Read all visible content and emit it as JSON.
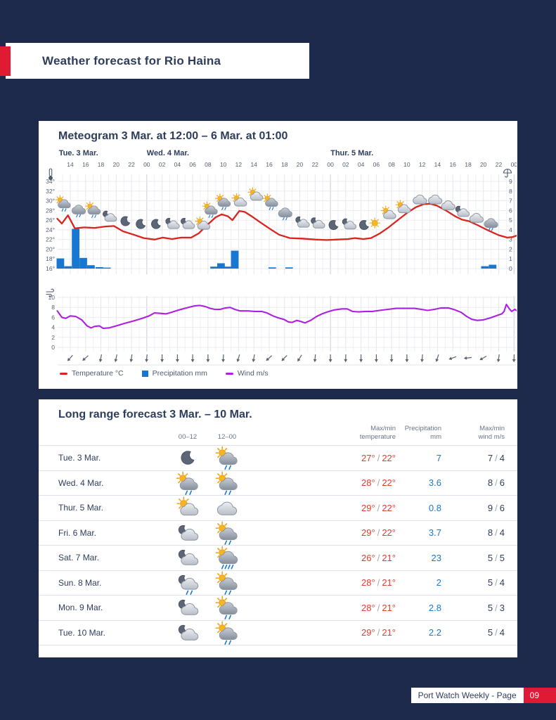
{
  "page": {
    "header_title": "Weather forecast for Rio Haina",
    "footer_label": "Port Watch Weekly - Page",
    "footer_page": "09"
  },
  "colors": {
    "background": "#1d2a4c",
    "accent_red": "#e01a32",
    "navy_text": "#2e3d5c",
    "temperature": "#d9251d",
    "precipitation": "#1878d1",
    "wind": "#ae20e0",
    "grid": "#eff1f5",
    "grid_major": "#e3e7ec",
    "grid_day": "#c9cfd8"
  },
  "meteogram": {
    "title": "Meteogram 3 Mar. at 12:00 – 6 Mar. at 01:00",
    "legend": [
      {
        "label": "Temperature °C",
        "color": "#d9251d",
        "swatch": "line"
      },
      {
        "label": "Precipitation mm",
        "color": "#1878d1",
        "swatch": "square"
      },
      {
        "label": "Wind m/s",
        "color": "#ae20e0",
        "swatch": "line"
      }
    ]
  },
  "long_range": {
    "title": "Long range forecast 3 Mar. – 10 Mar.",
    "headers": {
      "col_00_12": "00–12",
      "col_12_00": "12–00",
      "temp": "Max/min\ntemperature",
      "precip": "Precipitation\nmm",
      "wind": "Max/min\nwind m/s"
    }
  },
  "chart_data": [
    {
      "type": "line",
      "title": "Meteogram 3 Mar. at 12:00 – 6 Mar. at 01:00",
      "x_axis": {
        "unit": "hours since 3 Mar. 00:00",
        "range": [
          12.3,
          72.4
        ],
        "tick_labels": [
          "14",
          "16",
          "18",
          "20",
          "22",
          "00",
          "02",
          "04",
          "06",
          "08",
          "10",
          "12",
          "14",
          "16",
          "18",
          "20",
          "22",
          "00",
          "02",
          "04",
          "06",
          "08",
          "10",
          "12",
          "14",
          "16",
          "18",
          "20",
          "22",
          "00"
        ],
        "day_labels": [
          {
            "text": "Tue. 3 Mar.",
            "h": 12.5
          },
          {
            "text": "Wed. 4 Mar.",
            "h": 24
          },
          {
            "text": "Thur. 5 Mar.",
            "h": 48
          }
        ]
      },
      "y_left": {
        "icon": "thermometer-icon",
        "labels": [
          "34°",
          "32°",
          "30°",
          "28°",
          "26°",
          "24°",
          "22°",
          "20°",
          "18°",
          "16°"
        ],
        "range": [
          16,
          34
        ]
      },
      "y_right": {
        "icon": "umbrella-icon",
        "labels": [
          "9",
          "8",
          "7",
          "6",
          "5",
          "4",
          "3",
          "2",
          "1",
          "0"
        ],
        "range": [
          0,
          9
        ]
      },
      "series": [
        {
          "name": "Temperature °C",
          "type": "line",
          "color": "#d9251d",
          "points": [
            [
              12.3,
              26.3
            ],
            [
              12.9,
              25.3
            ],
            [
              13.7,
              27.0
            ],
            [
              14.6,
              24.3
            ],
            [
              15.8,
              24.5
            ],
            [
              17.2,
              24.4
            ],
            [
              18.6,
              24.7
            ],
            [
              19.7,
              24.8
            ],
            [
              20.9,
              23.7
            ],
            [
              22.3,
              23.0
            ],
            [
              23.6,
              22.3
            ],
            [
              25.0,
              22.0
            ],
            [
              26.1,
              22.4
            ],
            [
              27.3,
              22.1
            ],
            [
              28.5,
              22.4
            ],
            [
              29.8,
              22.4
            ],
            [
              30.8,
              23.3
            ],
            [
              31.9,
              25.0
            ],
            [
              33.0,
              26.6
            ],
            [
              33.8,
              27.2
            ],
            [
              34.6,
              26.8
            ],
            [
              35.2,
              26.0
            ],
            [
              36.1,
              27.9
            ],
            [
              36.8,
              27.7
            ],
            [
              37.7,
              26.8
            ],
            [
              38.8,
              25.6
            ],
            [
              40.0,
              24.3
            ],
            [
              41.3,
              23.0
            ],
            [
              42.7,
              22.3
            ],
            [
              44.3,
              22.2
            ],
            [
              46.0,
              22.0
            ],
            [
              47.5,
              21.9
            ],
            [
              48.9,
              22.0
            ],
            [
              50.3,
              22.1
            ],
            [
              51.2,
              22.3
            ],
            [
              52.3,
              22.1
            ],
            [
              53.3,
              22.3
            ],
            [
              54.4,
              23.2
            ],
            [
              55.6,
              24.5
            ],
            [
              56.8,
              26.0
            ],
            [
              58.1,
              27.6
            ],
            [
              59.2,
              28.7
            ],
            [
              60.2,
              29.3
            ],
            [
              61.0,
              29.4
            ],
            [
              61.9,
              29.0
            ],
            [
              63.1,
              28.0
            ],
            [
              64.3,
              26.8
            ],
            [
              65.2,
              26.1
            ],
            [
              66.1,
              25.8
            ],
            [
              67.2,
              25.0
            ],
            [
              68.6,
              23.9
            ],
            [
              70.0,
              22.9
            ],
            [
              71.1,
              22.4
            ],
            [
              71.8,
              22.5
            ],
            [
              72.3,
              22.8
            ]
          ]
        },
        {
          "name": "Precipitation mm",
          "type": "bar",
          "color": "#1878d1",
          "points": [
            [
              12.7,
              1.05
            ],
            [
              13.7,
              0.25
            ],
            [
              14.7,
              4.1
            ],
            [
              15.7,
              1.1
            ],
            [
              16.7,
              0.35
            ],
            [
              17.8,
              0.15
            ],
            [
              18.8,
              0.1
            ],
            [
              32.8,
              0.2
            ],
            [
              33.7,
              0.55
            ],
            [
              34.6,
              0.2
            ],
            [
              35.5,
              1.85
            ],
            [
              40.4,
              0.12
            ],
            [
              42.6,
              0.12
            ],
            [
              68.2,
              0.25
            ],
            [
              69.2,
              0.4
            ]
          ]
        }
      ],
      "weather_icons": [
        [
          13.1,
          29.5,
          "sun-cloud-rain"
        ],
        [
          15.1,
          28.2,
          "cloud-rain"
        ],
        [
          17.0,
          28.2,
          "sun-cloud-rain"
        ],
        [
          19.1,
          26.8,
          "moon-cloud"
        ],
        [
          21.2,
          25.8,
          "moon"
        ],
        [
          23.2,
          25.2,
          "moon"
        ],
        [
          25.2,
          25.2,
          "moon"
        ],
        [
          27.3,
          25.3,
          "moon-cloud"
        ],
        [
          29.3,
          25.3,
          "moon-cloud"
        ],
        [
          31.3,
          25.2,
          "sun-cloud"
        ],
        [
          32.3,
          28.2,
          "sun-cloud-rain"
        ],
        [
          34.0,
          29.8,
          "sun-cloud-rain"
        ],
        [
          36.1,
          30.0,
          "sun-cloud"
        ],
        [
          38.2,
          31.2,
          "sun-cloud"
        ],
        [
          40.2,
          29.8,
          "sun-cloud-rain"
        ],
        [
          42.1,
          27.6,
          "cloud-rain"
        ],
        [
          44.3,
          25.6,
          "moon-cloud"
        ],
        [
          46.3,
          25.4,
          "moon-cloud"
        ],
        [
          48.4,
          25.0,
          "moon"
        ],
        [
          50.4,
          25.2,
          "moon-cloud"
        ],
        [
          52.4,
          25.0,
          "moon"
        ],
        [
          53.8,
          25.4,
          "sun"
        ],
        [
          55.6,
          27.4,
          "sun-cloud"
        ],
        [
          57.5,
          28.6,
          "sun-cloud"
        ],
        [
          59.7,
          30.4,
          "cloud"
        ],
        [
          61.7,
          30.4,
          "cloud"
        ],
        [
          63.4,
          29.2,
          "cloud"
        ],
        [
          65.2,
          27.8,
          "moon-cloud"
        ],
        [
          67.1,
          26.6,
          "cloud"
        ],
        [
          69.0,
          25.4,
          "cloud-rain"
        ]
      ]
    },
    {
      "type": "line",
      "name": "Wind m/s",
      "color": "#ae20e0",
      "y": {
        "icon": "wind-icon",
        "labels": [
          "10",
          "8",
          "6",
          "4",
          "2",
          "0"
        ],
        "range": [
          0,
          10
        ]
      },
      "points": [
        [
          12.3,
          7.3
        ],
        [
          12.9,
          6.0
        ],
        [
          13.4,
          5.8
        ],
        [
          14.0,
          6.3
        ],
        [
          14.7,
          6.2
        ],
        [
          15.5,
          5.5
        ],
        [
          16.2,
          4.3
        ],
        [
          16.7,
          3.9
        ],
        [
          17.2,
          4.2
        ],
        [
          17.8,
          4.3
        ],
        [
          18.3,
          3.8
        ],
        [
          19.1,
          3.9
        ],
        [
          20.0,
          4.3
        ],
        [
          21.1,
          4.8
        ],
        [
          22.3,
          5.3
        ],
        [
          23.4,
          5.8
        ],
        [
          24.3,
          6.3
        ],
        [
          25.0,
          6.9
        ],
        [
          25.8,
          6.8
        ],
        [
          26.5,
          6.7
        ],
        [
          27.2,
          7.0
        ],
        [
          28.2,
          7.5
        ],
        [
          29.2,
          7.9
        ],
        [
          30.2,
          8.3
        ],
        [
          30.9,
          8.4
        ],
        [
          31.6,
          8.2
        ],
        [
          32.3,
          7.8
        ],
        [
          32.9,
          7.6
        ],
        [
          33.6,
          7.6
        ],
        [
          34.3,
          7.9
        ],
        [
          34.9,
          8.0
        ],
        [
          35.5,
          7.6
        ],
        [
          36.2,
          7.3
        ],
        [
          37.2,
          7.3
        ],
        [
          38.1,
          7.2
        ],
        [
          39.0,
          7.2
        ],
        [
          39.7,
          6.9
        ],
        [
          40.5,
          6.3
        ],
        [
          41.2,
          5.9
        ],
        [
          41.9,
          5.6
        ],
        [
          42.5,
          5.1
        ],
        [
          43.0,
          5.0
        ],
        [
          43.6,
          5.4
        ],
        [
          44.1,
          5.2
        ],
        [
          44.7,
          4.9
        ],
        [
          45.4,
          5.4
        ],
        [
          46.2,
          6.2
        ],
        [
          46.9,
          6.7
        ],
        [
          47.6,
          7.1
        ],
        [
          48.5,
          7.5
        ],
        [
          49.5,
          7.7
        ],
        [
          50.2,
          7.7
        ],
        [
          50.9,
          7.2
        ],
        [
          51.7,
          7.1
        ],
        [
          52.6,
          7.2
        ],
        [
          53.5,
          7.2
        ],
        [
          54.4,
          7.4
        ],
        [
          55.5,
          7.6
        ],
        [
          56.6,
          7.8
        ],
        [
          57.9,
          7.8
        ],
        [
          59.0,
          7.8
        ],
        [
          59.9,
          7.6
        ],
        [
          60.7,
          7.4
        ],
        [
          61.6,
          7.6
        ],
        [
          62.5,
          7.9
        ],
        [
          63.4,
          7.9
        ],
        [
          64.3,
          7.5
        ],
        [
          65.1,
          7.0
        ],
        [
          65.8,
          6.2
        ],
        [
          66.5,
          5.6
        ],
        [
          67.2,
          5.4
        ],
        [
          68.0,
          5.5
        ],
        [
          68.9,
          5.9
        ],
        [
          69.8,
          6.4
        ],
        [
          70.4,
          6.7
        ],
        [
          70.7,
          7.2
        ],
        [
          71.0,
          8.6
        ],
        [
          71.4,
          7.7
        ],
        [
          71.7,
          7.2
        ],
        [
          72.1,
          7.6
        ],
        [
          72.3,
          7.4
        ]
      ],
      "direction_arrows_deg": [
        222,
        228,
        190,
        192,
        188,
        185,
        180,
        180,
        180,
        180,
        183,
        196,
        190,
        228,
        224,
        212,
        185,
        180,
        182,
        180,
        180,
        180,
        180,
        185,
        198,
        250,
        263,
        240,
        188,
        182
      ]
    },
    {
      "type": "table",
      "title": "Long range forecast 3 Mar. – 10 Mar.",
      "columns": [
        "day",
        "00–12",
        "12–00",
        "Max/min temperature",
        "Precipitation mm",
        "Max/min wind m/s"
      ],
      "rows": [
        {
          "day": "Tue. 3 Mar.",
          "icon_00_12": "moon",
          "icon_12_00": "sun-cloud-rain",
          "temp_max": "27°",
          "temp_min": "22°",
          "precip": "7",
          "wind_max": "7",
          "wind_min": "4"
        },
        {
          "day": "Wed. 4 Mar.",
          "icon_00_12": "sun-cloud-rain",
          "icon_12_00": "sun-cloud-rain",
          "temp_max": "28°",
          "temp_min": "22°",
          "precip": "3.6",
          "wind_max": "8",
          "wind_min": "6"
        },
        {
          "day": "Thur. 5 Mar.",
          "icon_00_12": "sun-cloud",
          "icon_12_00": "cloud",
          "temp_max": "29°",
          "temp_min": "22°",
          "precip": "0.8",
          "wind_max": "9",
          "wind_min": "6"
        },
        {
          "day": "Fri. 6 Mar.",
          "icon_00_12": "moon-cloud",
          "icon_12_00": "sun-cloud-rain",
          "temp_max": "29°",
          "temp_min": "22°",
          "precip": "3.7",
          "wind_max": "8",
          "wind_min": "4"
        },
        {
          "day": "Sat. 7 Mar.",
          "icon_00_12": "moon-cloud",
          "icon_12_00": "sun-cloud-heavy-rain",
          "temp_max": "26°",
          "temp_min": "21°",
          "precip": "23",
          "wind_max": "5",
          "wind_min": "5"
        },
        {
          "day": "Sun. 8 Mar.",
          "icon_00_12": "moon-cloud-rain",
          "icon_12_00": "sun-cloud-rain",
          "temp_max": "28°",
          "temp_min": "21°",
          "precip": "2",
          "wind_max": "5",
          "wind_min": "4"
        },
        {
          "day": "Mon. 9 Mar.",
          "icon_00_12": "moon-cloud",
          "icon_12_00": "sun-cloud-rain",
          "temp_max": "28°",
          "temp_min": "21°",
          "precip": "2.8",
          "wind_max": "5",
          "wind_min": "3"
        },
        {
          "day": "Tue. 10 Mar.",
          "icon_00_12": "moon-cloud",
          "icon_12_00": "sun-cloud-rain",
          "temp_max": "29°",
          "temp_min": "21°",
          "precip": "2.2",
          "wind_max": "5",
          "wind_min": "4"
        }
      ]
    }
  ]
}
